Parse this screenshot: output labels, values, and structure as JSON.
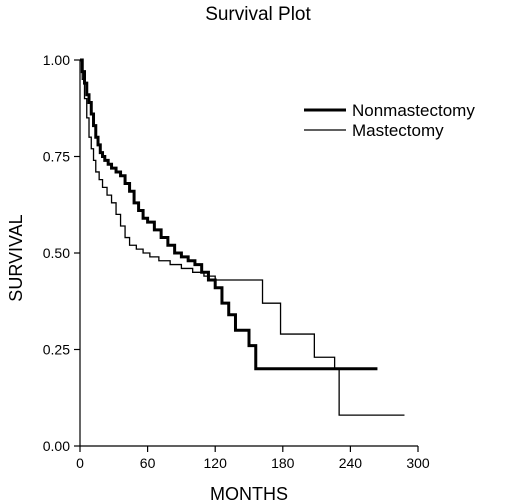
{
  "chart_data": {
    "type": "line",
    "step": true,
    "title": "Survival Plot",
    "xlabel": "MONTHS",
    "ylabel": "SURVIVAL",
    "xlim": [
      0,
      300
    ],
    "ylim": [
      0,
      1
    ],
    "xticks": [
      0,
      60,
      120,
      180,
      240,
      300
    ],
    "yticks": [
      0,
      0.25,
      0.5,
      0.75,
      1
    ],
    "ytick_labels": [
      "0.00",
      "0.25",
      "0.50",
      "0.75",
      "1.00"
    ],
    "grid": false,
    "legend": "top-right",
    "series": [
      {
        "name": "Nonmastectomy",
        "color": "#000000",
        "line": "thick",
        "x": [
          0,
          2,
          4,
          6,
          8,
          10,
          12,
          14,
          16,
          18,
          20,
          22,
          25,
          28,
          32,
          36,
          40,
          44,
          48,
          52,
          56,
          60,
          66,
          72,
          78,
          84,
          90,
          96,
          102,
          108,
          114,
          120,
          126,
          132,
          138,
          150,
          156,
          264
        ],
        "y": [
          1.0,
          0.97,
          0.94,
          0.91,
          0.89,
          0.86,
          0.83,
          0.8,
          0.78,
          0.76,
          0.75,
          0.74,
          0.73,
          0.72,
          0.71,
          0.7,
          0.68,
          0.66,
          0.63,
          0.61,
          0.59,
          0.58,
          0.56,
          0.54,
          0.52,
          0.5,
          0.49,
          0.48,
          0.47,
          0.45,
          0.43,
          0.41,
          0.37,
          0.34,
          0.3,
          0.26,
          0.2,
          0.2
        ]
      },
      {
        "name": "Mastectomy",
        "color": "#000000",
        "line": "thin",
        "x": [
          0,
          2,
          4,
          6,
          8,
          10,
          12,
          14,
          17,
          20,
          24,
          28,
          32,
          36,
          40,
          44,
          50,
          56,
          62,
          70,
          80,
          90,
          100,
          110,
          120,
          156,
          162,
          178,
          208,
          226,
          230,
          288
        ],
        "y": [
          1.0,
          0.95,
          0.9,
          0.85,
          0.8,
          0.77,
          0.74,
          0.71,
          0.69,
          0.67,
          0.65,
          0.63,
          0.6,
          0.57,
          0.54,
          0.52,
          0.51,
          0.5,
          0.49,
          0.48,
          0.47,
          0.46,
          0.45,
          0.44,
          0.43,
          0.43,
          0.37,
          0.29,
          0.23,
          0.2,
          0.08,
          0.08
        ]
      }
    ]
  }
}
